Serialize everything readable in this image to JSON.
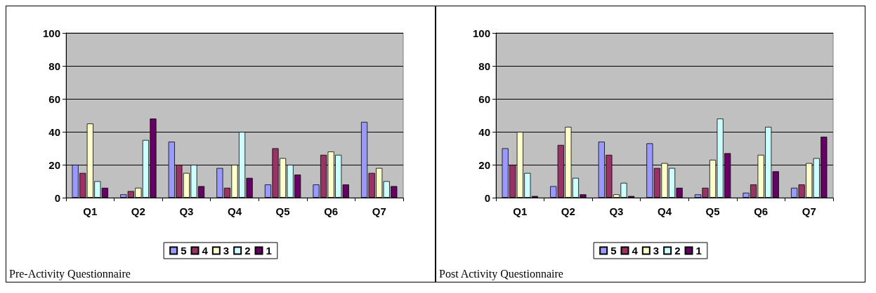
{
  "chart_data": [
    {
      "type": "bar",
      "categories": [
        "Q1",
        "Q2",
        "Q3",
        "Q4",
        "Q5",
        "Q6",
        "Q7"
      ],
      "ylim": [
        0,
        100
      ],
      "yticks": [
        0,
        20,
        40,
        60,
        80,
        100
      ],
      "grid": "y",
      "legend": "bottom",
      "annotations": [
        "Pre-Activity Questionnaire"
      ],
      "series": [
        {
          "name": "5",
          "color": "#9999ff",
          "values": [
            20,
            2,
            34,
            18,
            8,
            8,
            46
          ]
        },
        {
          "name": "4",
          "color": "#993366",
          "values": [
            15,
            4,
            20,
            6,
            30,
            26,
            15
          ]
        },
        {
          "name": "3",
          "color": "#ffffcc",
          "values": [
            45,
            6,
            15,
            20,
            24,
            28,
            18
          ]
        },
        {
          "name": "2",
          "color": "#ccffff",
          "values": [
            10,
            35,
            20,
            40,
            20,
            26,
            10
          ]
        },
        {
          "name": "1",
          "color": "#660066",
          "values": [
            6,
            48,
            7,
            12,
            14,
            8,
            7
          ]
        }
      ]
    },
    {
      "type": "bar",
      "categories": [
        "Q1",
        "Q2",
        "Q3",
        "Q4",
        "Q5",
        "Q6",
        "Q7"
      ],
      "ylim": [
        0,
        100
      ],
      "yticks": [
        0,
        20,
        40,
        60,
        80,
        100
      ],
      "grid": "y",
      "legend": "bottom",
      "annotations": [
        "Post Activity Questionnaire"
      ],
      "series": [
        {
          "name": "5",
          "color": "#9999ff",
          "values": [
            30,
            7,
            34,
            33,
            2,
            3,
            6
          ]
        },
        {
          "name": "4",
          "color": "#993366",
          "values": [
            20,
            32,
            26,
            18,
            6,
            8,
            8
          ]
        },
        {
          "name": "3",
          "color": "#ffffcc",
          "values": [
            40,
            43,
            2,
            21,
            23,
            26,
            21
          ]
        },
        {
          "name": "2",
          "color": "#ccffff",
          "values": [
            15,
            12,
            9,
            18,
            48,
            43,
            24
          ]
        },
        {
          "name": "1",
          "color": "#660066",
          "values": [
            1,
            2,
            1,
            6,
            27,
            16,
            37
          ]
        }
      ]
    }
  ]
}
